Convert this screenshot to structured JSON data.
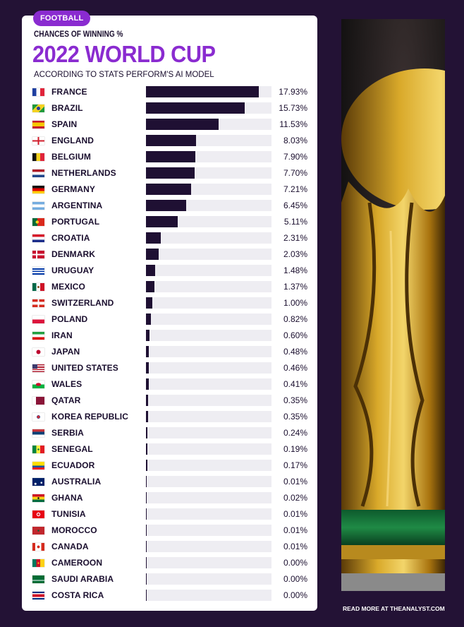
{
  "header": {
    "tag": "FOOTBALL",
    "kicker": "CHANCES OF WINNING %",
    "title": "2022 WORLD CUP",
    "subtitle": "ACCORDING TO STATS PERFORM'S AI MODEL"
  },
  "footer": {
    "credit": "READ MORE AT THEANALYST.COM"
  },
  "colors": {
    "background": "#231235",
    "accent": "#8a2bd0",
    "bar": "#1f1033",
    "track": "#eeedf2"
  },
  "chart_data": {
    "type": "bar",
    "orientation": "horizontal",
    "title": "2022 WORLD CUP",
    "subtitle": "ACCORDING TO STATS PERFORM'S AI MODEL",
    "xlabel": "",
    "ylabel": "",
    "xlim": [
      0,
      20
    ],
    "grid": false,
    "categories": [
      "FRANCE",
      "BRAZIL",
      "SPAIN",
      "ENGLAND",
      "BELGIUM",
      "NETHERLANDS",
      "GERMANY",
      "ARGENTINA",
      "PORTUGAL",
      "CROATIA",
      "DENMARK",
      "URUGUAY",
      "MEXICO",
      "SWITZERLAND",
      "POLAND",
      "IRAN",
      "JAPAN",
      "UNITED STATES",
      "WALES",
      "QATAR",
      "KOREA REPUBLIC",
      "SERBIA",
      "SENEGAL",
      "ECUADOR",
      "AUSTRALIA",
      "GHANA",
      "TUNISIA",
      "MOROCCO",
      "CANADA",
      "CAMEROON",
      "SAUDI ARABIA",
      "COSTA RICA"
    ],
    "values": [
      17.93,
      15.73,
      11.53,
      8.03,
      7.9,
      7.7,
      7.21,
      6.45,
      5.11,
      2.31,
      2.03,
      1.48,
      1.37,
      1.0,
      0.82,
      0.6,
      0.48,
      0.46,
      0.41,
      0.35,
      0.35,
      0.24,
      0.19,
      0.17,
      0.01,
      0.02,
      0.01,
      0.01,
      0.01,
      0.0,
      0.0,
      0.0
    ],
    "labels": [
      "17.93%",
      "15.73%",
      "11.53%",
      "8.03%",
      "7.90%",
      "7.70%",
      "7.21%",
      "6.45%",
      "5.11%",
      "2.31%",
      "2.03%",
      "1.48%",
      "1.37%",
      "1.00%",
      "0.82%",
      "0.60%",
      "0.48%",
      "0.46%",
      "0.41%",
      "0.35%",
      "0.35%",
      "0.24%",
      "0.19%",
      "0.17%",
      "0.01%",
      "0.02%",
      "0.01%",
      "0.01%",
      "0.01%",
      "0.00%",
      "0.00%",
      "0.00%"
    ],
    "flags": [
      "flag-france-icon",
      "flag-brazil-icon",
      "flag-spain-icon",
      "flag-england-icon",
      "flag-belgium-icon",
      "flag-netherlands-icon",
      "flag-germany-icon",
      "flag-argentina-icon",
      "flag-portugal-icon",
      "flag-croatia-icon",
      "flag-denmark-icon",
      "flag-uruguay-icon",
      "flag-mexico-icon",
      "flag-switzerland-icon",
      "flag-poland-icon",
      "flag-iran-icon",
      "flag-japan-icon",
      "flag-united-states-icon",
      "flag-wales-icon",
      "flag-qatar-icon",
      "flag-korea-republic-icon",
      "flag-serbia-icon",
      "flag-senegal-icon",
      "flag-ecuador-icon",
      "flag-australia-icon",
      "flag-ghana-icon",
      "flag-tunisia-icon",
      "flag-morocco-icon",
      "flag-canada-icon",
      "flag-cameroon-icon",
      "flag-saudi-arabia-icon",
      "flag-costa-rica-icon"
    ]
  }
}
